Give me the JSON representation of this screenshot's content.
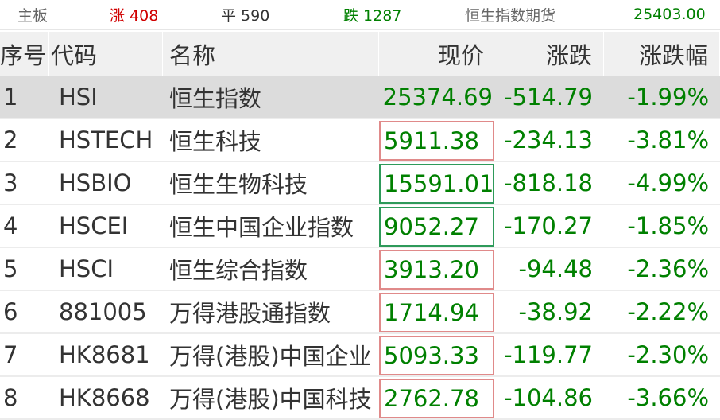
{
  "topbar": {
    "board": "主板",
    "up": "涨 408",
    "flat": "平 590",
    "down": "跌 1287",
    "futures_label": "恒生指数期货",
    "futures_value": "25403.00"
  },
  "colors": {
    "up": "#d00000",
    "down": "#008000",
    "flat": "#333333",
    "selected_row": "#dcdcdc"
  },
  "columns": [
    "序号",
    "代码",
    "名称",
    "现价",
    "涨跌",
    "涨跌幅"
  ],
  "rows": [
    {
      "no": "1",
      "code": "HSI",
      "name": "恒生指数",
      "price": "25374.69",
      "change": "-514.79",
      "pct": "-1.99%",
      "flash": "none"
    },
    {
      "no": "2",
      "code": "HSTECH",
      "name": "恒生科技",
      "price": "5911.38",
      "change": "-234.13",
      "pct": "-3.81%",
      "flash": "red"
    },
    {
      "no": "3",
      "code": "HSBIO",
      "name": "恒生生物科技",
      "price": "15591.01",
      "change": "-818.18",
      "pct": "-4.99%",
      "flash": "green"
    },
    {
      "no": "4",
      "code": "HSCEI",
      "name": "恒生中国企业指数",
      "price": "9052.27",
      "change": "-170.27",
      "pct": "-1.85%",
      "flash": "green"
    },
    {
      "no": "5",
      "code": "HSCI",
      "name": "恒生综合指数",
      "price": "3913.20",
      "change": "-94.48",
      "pct": "-2.36%",
      "flash": "red"
    },
    {
      "no": "6",
      "code": "881005",
      "name": "万得港股通指数",
      "price": "1714.94",
      "change": "-38.92",
      "pct": "-2.22%",
      "flash": "red"
    },
    {
      "no": "7",
      "code": "HK8681",
      "name": "万得(港股)中国企业",
      "price": "5093.33",
      "change": "-119.77",
      "pct": "-2.30%",
      "flash": "red"
    },
    {
      "no": "8",
      "code": "HK8668",
      "name": "万得(港股)中国科技",
      "price": "2762.78",
      "change": "-104.86",
      "pct": "-3.66%",
      "flash": "red"
    }
  ]
}
